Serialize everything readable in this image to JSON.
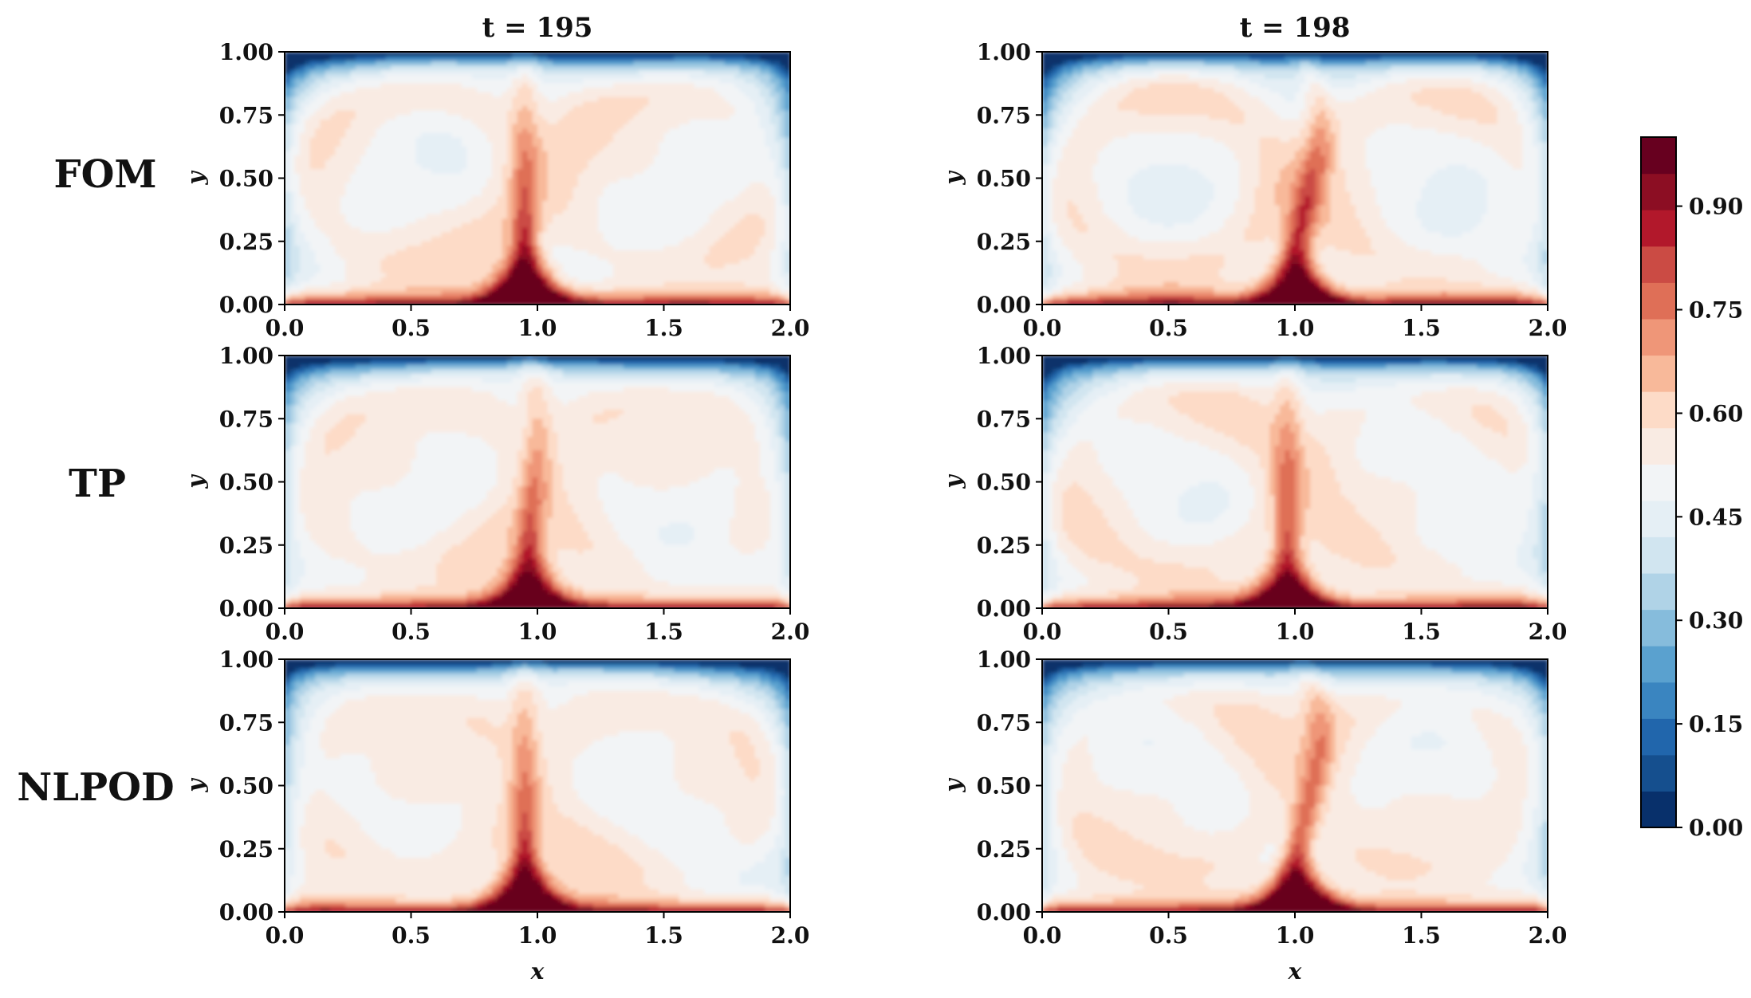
{
  "figure": {
    "col_titles": [
      "t = 195",
      "t = 198"
    ],
    "row_labels": [
      "FOM",
      "TP",
      "NLPOD"
    ],
    "xlabel": "x",
    "ylabel": "y",
    "x_ticks": [
      "0.0",
      "0.5",
      "1.0",
      "1.5",
      "2.0"
    ],
    "y_ticks": [
      "0.00",
      "0.25",
      "0.50",
      "0.75",
      "1.00"
    ],
    "colorbar_ticks": [
      "0.00",
      "0.15",
      "0.30",
      "0.45",
      "0.60",
      "0.75",
      "0.90"
    ],
    "colormap_hex": [
      "#08306b",
      "#154f8e",
      "#2166ac",
      "#3a85c0",
      "#5aa1cf",
      "#86bcdc",
      "#b0d3e7",
      "#d1e5f0",
      "#e5eff5",
      "#f2f4f6",
      "#f9ebe3",
      "#fddbc7",
      "#f8b99a",
      "#ef9678",
      "#df6f57",
      "#cb4b44",
      "#b2182b",
      "#8c0e23",
      "#67001f"
    ]
  },
  "chart_data": [
    {
      "type": "heatmap",
      "row": "FOM",
      "title": "t = 195",
      "xlabel": "",
      "ylabel": "y",
      "xlim": [
        0,
        2
      ],
      "ylim": [
        0,
        1
      ],
      "clim": [
        0,
        1
      ],
      "plume_x": 0.95,
      "plume_strength": 1.0,
      "plume_tilt": 0.0,
      "seed": 1
    },
    {
      "type": "heatmap",
      "row": "FOM",
      "title": "t = 198",
      "xlabel": "",
      "ylabel": "y",
      "xlim": [
        0,
        2
      ],
      "ylim": [
        0,
        1
      ],
      "clim": [
        0,
        1
      ],
      "plume_x": 1.02,
      "plume_strength": 0.95,
      "plume_tilt": 0.25,
      "seed": 2
    },
    {
      "type": "heatmap",
      "row": "TP",
      "title": "",
      "xlabel": "",
      "ylabel": "y",
      "xlim": [
        0,
        2
      ],
      "ylim": [
        0,
        1
      ],
      "clim": [
        0,
        1
      ],
      "plume_x": 0.97,
      "plume_strength": 0.75,
      "plume_tilt": 0.1,
      "seed": 3
    },
    {
      "type": "heatmap",
      "row": "TP",
      "title": "",
      "xlabel": "",
      "ylabel": "y",
      "xlim": [
        0,
        2
      ],
      "ylim": [
        0,
        1
      ],
      "clim": [
        0,
        1
      ],
      "plume_x": 0.97,
      "plume_strength": 0.8,
      "plume_tilt": 0.0,
      "seed": 4
    },
    {
      "type": "heatmap",
      "row": "NLPOD",
      "title": "",
      "xlabel": "x",
      "ylabel": "y",
      "xlim": [
        0,
        2
      ],
      "ylim": [
        0,
        1
      ],
      "clim": [
        0,
        1
      ],
      "plume_x": 0.95,
      "plume_strength": 0.9,
      "plume_tilt": 0.0,
      "seed": 5
    },
    {
      "type": "heatmap",
      "row": "NLPOD",
      "title": "",
      "xlabel": "x",
      "ylabel": "y",
      "xlim": [
        0,
        2
      ],
      "ylim": [
        0,
        1
      ],
      "clim": [
        0,
        1
      ],
      "plume_x": 1.02,
      "plume_strength": 0.95,
      "plume_tilt": 0.25,
      "seed": 6
    }
  ]
}
